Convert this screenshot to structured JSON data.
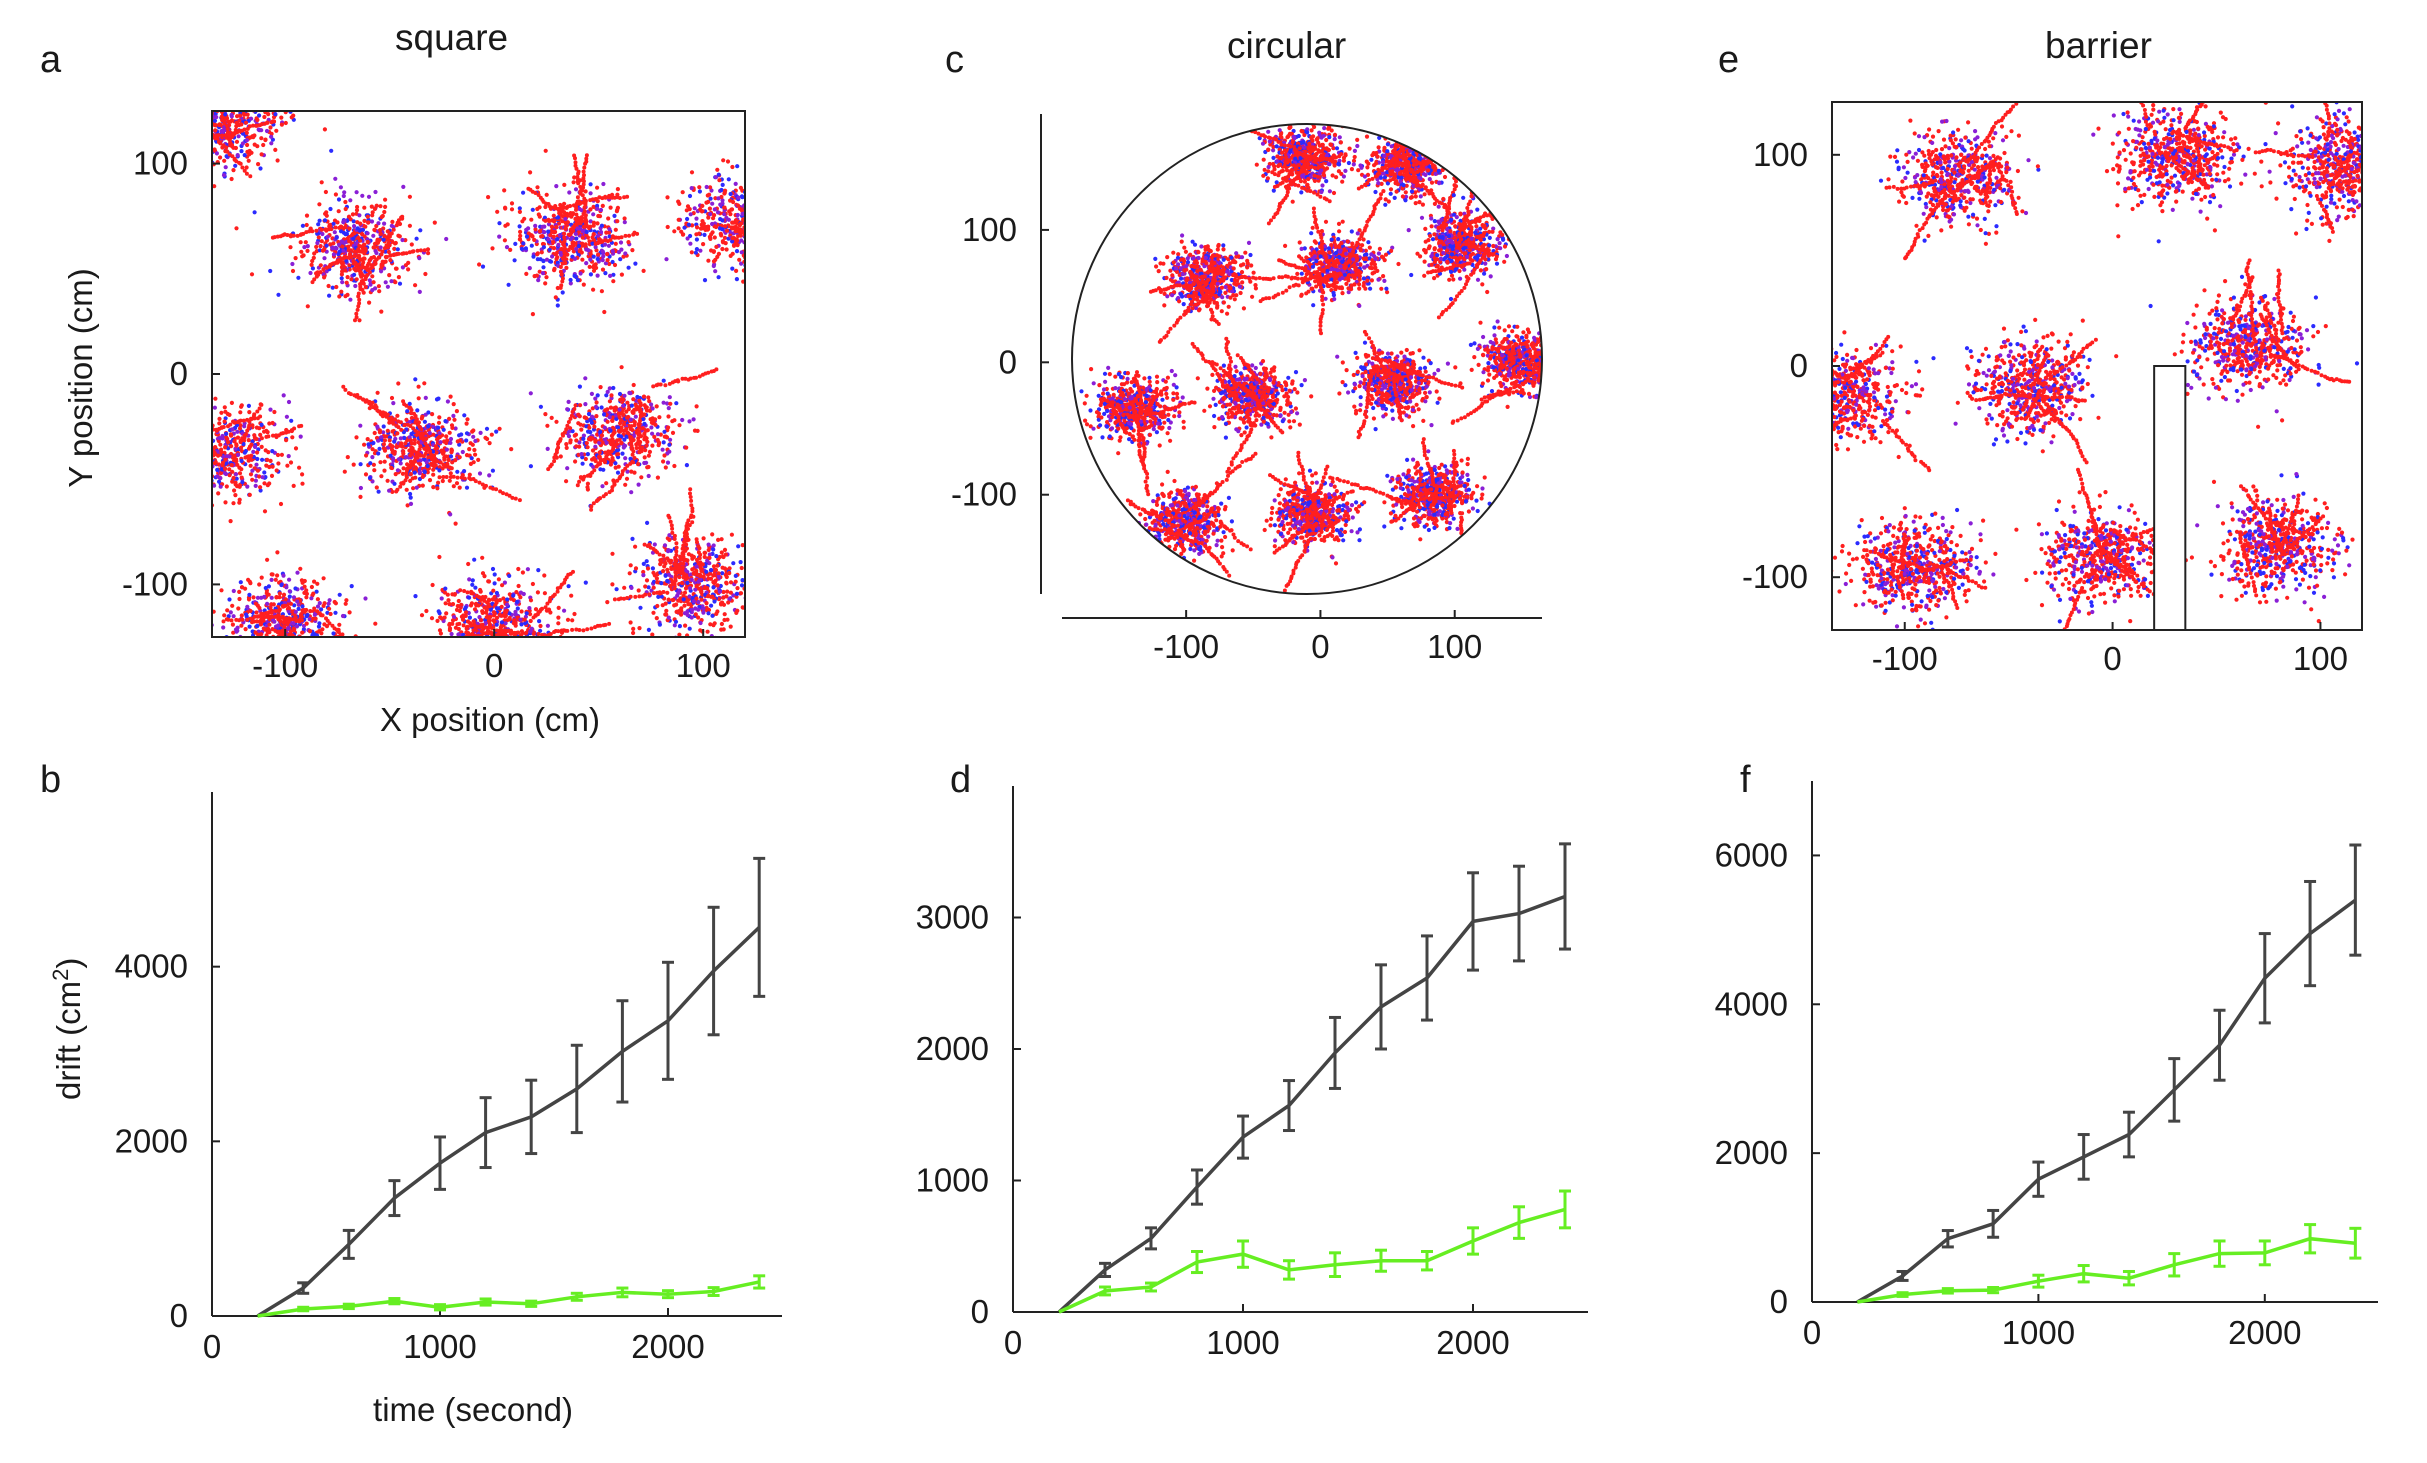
{
  "figure": {
    "panels": {
      "a": {
        "letter": "a",
        "title": "square",
        "xlabel": "X position (cm)",
        "ylabel": "Y position (cm)"
      },
      "c": {
        "letter": "c",
        "title": "circular"
      },
      "e": {
        "letter": "e",
        "title": "barrier"
      },
      "b": {
        "letter": "b",
        "xlabel": "time (second)",
        "ylabel": "drift (cm",
        "ylabel_sup": "2",
        "ylabel_end": ")"
      },
      "d": {
        "letter": "d"
      },
      "f": {
        "letter": "f"
      }
    }
  },
  "colors": {
    "early_points": "#2b2bff",
    "mid_points": "#8a1fd6",
    "late_points": "#ff1f1f",
    "dark_line": "#444444",
    "green_line": "#66ee22"
  },
  "chart_data": [
    {
      "panel": "a",
      "type": "scatter",
      "title": "square",
      "xlabel": "X position (cm)",
      "ylabel": "Y position (cm)",
      "xlim": [
        -135,
        120
      ],
      "ylim": [
        -125,
        125
      ],
      "xticks": [
        -100,
        0,
        100
      ],
      "yticks": [
        -100,
        0,
        100
      ],
      "clusters": [
        {
          "x": -68,
          "y": 60
        },
        {
          "x": 36,
          "y": 65
        },
        {
          "x": -35,
          "y": -35
        },
        {
          "x": 60,
          "y": -28
        },
        {
          "x": -130,
          "y": -38
        },
        {
          "x": 118,
          "y": 72
        },
        {
          "x": -130,
          "y": 120
        },
        {
          "x": 0,
          "y": -118
        },
        {
          "x": -100,
          "y": -118
        },
        {
          "x": 95,
          "y": -100
        }
      ]
    },
    {
      "panel": "c",
      "type": "scatter",
      "title": "circular",
      "xlim": [
        -185,
        165
      ],
      "ylim": [
        -175,
        180
      ],
      "xticks": [
        -100,
        0,
        100
      ],
      "yticks": [
        -100,
        0,
        100
      ],
      "arena": "circle",
      "clusters": [
        {
          "x": -10,
          "y": 155
        },
        {
          "x": -85,
          "y": 65
        },
        {
          "x": 15,
          "y": 75
        },
        {
          "x": 105,
          "y": 90
        },
        {
          "x": -140,
          "y": -35
        },
        {
          "x": -50,
          "y": -25
        },
        {
          "x": 55,
          "y": -15
        },
        {
          "x": 150,
          "y": 0
        },
        {
          "x": -100,
          "y": -120
        },
        {
          "x": -5,
          "y": -115
        },
        {
          "x": 85,
          "y": -100
        },
        {
          "x": 65,
          "y": 150
        }
      ]
    },
    {
      "panel": "e",
      "type": "scatter",
      "title": "barrier",
      "xlim": [
        -135,
        120
      ],
      "ylim": [
        -125,
        125
      ],
      "xticks": [
        -100,
        0,
        100
      ],
      "yticks": [
        -100,
        0,
        100
      ],
      "barrier": {
        "x0": 20,
        "x1": 35,
        "y0": -125,
        "y1": 0
      },
      "clusters": [
        {
          "x": -75,
          "y": 90
        },
        {
          "x": 30,
          "y": 100
        },
        {
          "x": 110,
          "y": 95
        },
        {
          "x": -40,
          "y": -10
        },
        {
          "x": 65,
          "y": 10
        },
        {
          "x": -130,
          "y": -15
        },
        {
          "x": -95,
          "y": -95
        },
        {
          "x": -5,
          "y": -90
        },
        {
          "x": 80,
          "y": -85
        }
      ]
    },
    {
      "panel": "b",
      "type": "line",
      "xlabel": "time (second)",
      "ylabel": "drift (cm²)",
      "xlim": [
        0,
        2500
      ],
      "ylim": [
        0,
        6000
      ],
      "xticks": [
        0,
        1000,
        2000
      ],
      "yticks": [
        0,
        2000,
        4000
      ],
      "series": [
        {
          "name": "dark",
          "x": [
            200,
            400,
            600,
            800,
            1000,
            1200,
            1400,
            1600,
            1800,
            2000,
            2200,
            2400
          ],
          "y": [
            0,
            320,
            820,
            1350,
            1750,
            2100,
            2280,
            2600,
            3030,
            3380,
            3950,
            4450
          ],
          "err": [
            0,
            60,
            160,
            200,
            300,
            400,
            420,
            500,
            580,
            670,
            730,
            790
          ]
        },
        {
          "name": "green",
          "x": [
            200,
            400,
            600,
            800,
            1000,
            1200,
            1400,
            1600,
            1800,
            2000,
            2200,
            2400
          ],
          "y": [
            0,
            80,
            110,
            170,
            100,
            160,
            140,
            220,
            270,
            250,
            280,
            390
          ],
          "err": [
            0,
            20,
            25,
            30,
            30,
            35,
            30,
            40,
            50,
            40,
            45,
            70
          ]
        }
      ]
    },
    {
      "panel": "d",
      "type": "line",
      "xlim": [
        0,
        2500
      ],
      "ylim": [
        0,
        4000
      ],
      "xticks": [
        0,
        1000,
        2000
      ],
      "yticks": [
        0,
        1000,
        2000,
        3000
      ],
      "series": [
        {
          "name": "dark",
          "x": [
            200,
            400,
            600,
            800,
            1000,
            1200,
            1400,
            1600,
            1800,
            2000,
            2200,
            2400
          ],
          "y": [
            0,
            320,
            560,
            950,
            1330,
            1570,
            1970,
            2320,
            2540,
            2970,
            3030,
            3160
          ],
          "err": [
            0,
            50,
            80,
            130,
            160,
            190,
            270,
            320,
            320,
            370,
            360,
            400
          ]
        },
        {
          "name": "green",
          "x": [
            200,
            400,
            600,
            800,
            1000,
            1200,
            1400,
            1600,
            1800,
            2000,
            2200,
            2400
          ],
          "y": [
            0,
            160,
            190,
            380,
            440,
            320,
            360,
            390,
            390,
            540,
            680,
            780
          ],
          "err": [
            0,
            30,
            30,
            80,
            100,
            70,
            90,
            80,
            70,
            100,
            120,
            140
          ]
        }
      ]
    },
    {
      "panel": "f",
      "type": "line",
      "xlim": [
        0,
        2500
      ],
      "ylim": [
        0,
        7000
      ],
      "xticks": [
        0,
        1000,
        2000
      ],
      "yticks": [
        0,
        2000,
        4000,
        6000
      ],
      "series": [
        {
          "name": "dark",
          "x": [
            200,
            400,
            600,
            800,
            1000,
            1200,
            1400,
            1600,
            1800,
            2000,
            2200,
            2400
          ],
          "y": [
            0,
            350,
            850,
            1050,
            1650,
            1950,
            2250,
            2850,
            3450,
            4350,
            4950,
            5400
          ],
          "err": [
            0,
            60,
            110,
            180,
            230,
            300,
            300,
            420,
            470,
            600,
            700,
            740
          ]
        },
        {
          "name": "green",
          "x": [
            200,
            400,
            600,
            800,
            1000,
            1200,
            1400,
            1600,
            1800,
            2000,
            2200,
            2400
          ],
          "y": [
            0,
            100,
            150,
            160,
            280,
            380,
            320,
            500,
            650,
            660,
            850,
            790
          ],
          "err": [
            0,
            25,
            30,
            35,
            80,
            110,
            90,
            150,
            170,
            160,
            190,
            200
          ]
        }
      ]
    }
  ]
}
